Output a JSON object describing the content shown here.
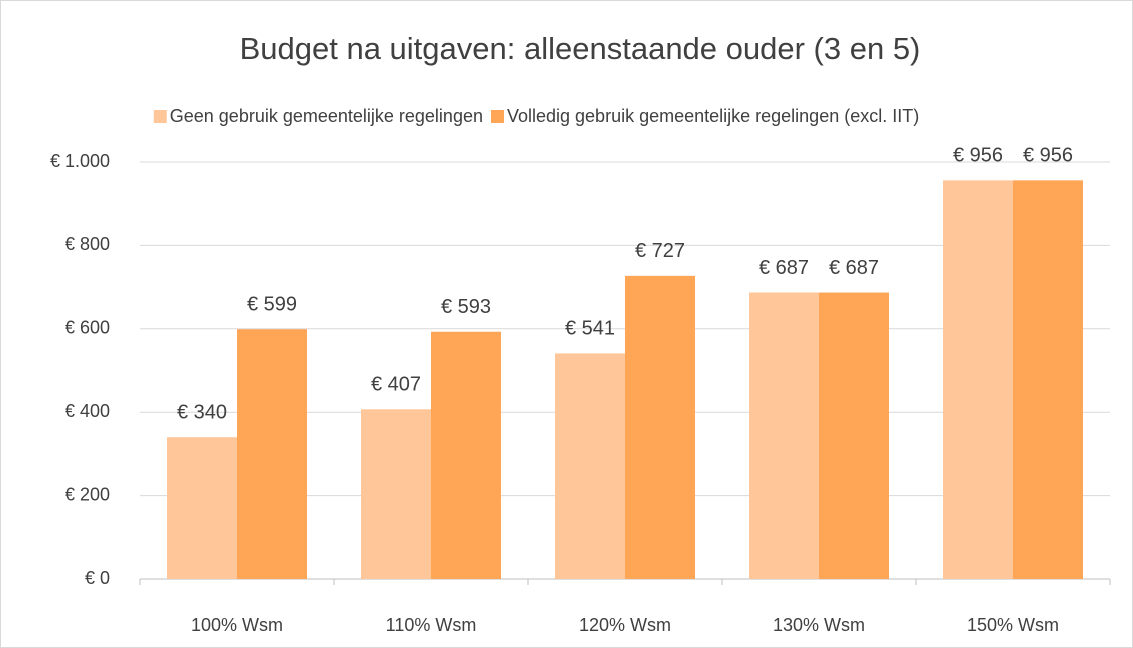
{
  "chart_data": {
    "type": "bar",
    "title": "Budget na uitgaven: alleenstaande ouder (3 en 5)",
    "categories": [
      "100% Wsm",
      "110% Wsm",
      "120% Wsm",
      "130% Wsm",
      "150% Wsm"
    ],
    "series": [
      {
        "name": "Geen gebruik gemeentelijke regelingen",
        "color": "#ffc799",
        "values": [
          340,
          407,
          541,
          687,
          956
        ],
        "value_labels": [
          "€ 340",
          "€ 407",
          "€ 541",
          "€ 687",
          "€ 956"
        ]
      },
      {
        "name": "Volledig gebruik gemeentelijke regelingen (excl. IIT)",
        "color": "#ffa556",
        "values": [
          599,
          593,
          727,
          687,
          956
        ],
        "value_labels": [
          "€ 599",
          "€ 593",
          "€ 727",
          "€ 687",
          "€ 956"
        ]
      }
    ],
    "ylim": [
      0,
      1000
    ],
    "yticks": [
      {
        "value": 0,
        "label": "€ 0"
      },
      {
        "value": 200,
        "label": "€ 200"
      },
      {
        "value": 400,
        "label": "€ 400"
      },
      {
        "value": 600,
        "label": "€ 600"
      },
      {
        "value": 800,
        "label": "€ 800"
      },
      {
        "value": 1000,
        "label": "€ 1.000"
      }
    ],
    "grid": true,
    "legend": "top"
  }
}
